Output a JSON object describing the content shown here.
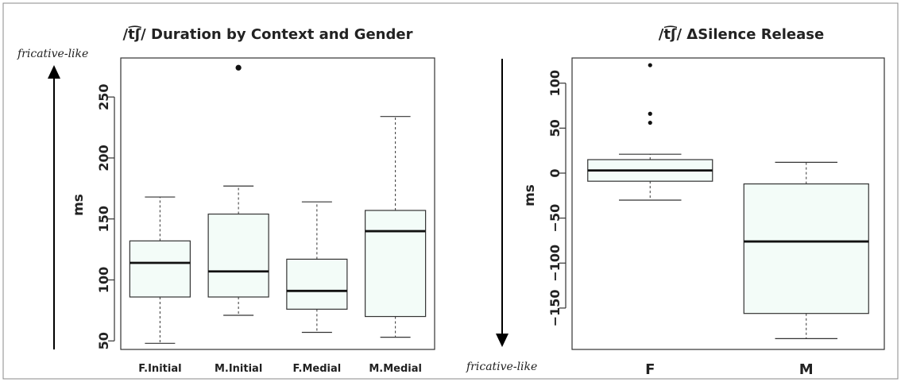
{
  "annotations": {
    "left_arrow_label": "fricative-like",
    "right_arrow_label": "fricative-like"
  },
  "chart_data": [
    {
      "type": "boxplot",
      "title": "/t͡ʃ/ Duration by Context and Gender",
      "xlabel": "",
      "ylabel": "ms",
      "ylim": [
        43,
        282
      ],
      "y_ticks": [
        50,
        100,
        150,
        200,
        250
      ],
      "grid": false,
      "categories": [
        "F.Initial",
        "M.Initial",
        "F.Medial",
        "M.Medial"
      ],
      "box_fill": "#f3fcf8",
      "boxes": [
        {
          "min": 48,
          "q1": 86,
          "median": 114,
          "q3": 132,
          "max": 168,
          "outliers": []
        },
        {
          "min": 71,
          "q1": 86,
          "median": 107,
          "q3": 154,
          "max": 177,
          "outliers": [
            274
          ]
        },
        {
          "min": 57,
          "q1": 76,
          "median": 91,
          "q3": 117,
          "max": 164,
          "outliers": []
        },
        {
          "min": 53,
          "q1": 70,
          "median": 140,
          "q3": 157,
          "max": 234,
          "outliers": []
        }
      ]
    },
    {
      "type": "boxplot",
      "title": "/t͡ʃ/ ΔSilence Release",
      "xlabel": "",
      "ylabel": "ms",
      "ylim": [
        -196,
        128
      ],
      "y_ticks": [
        -150,
        -100,
        -50,
        0,
        50,
        100
      ],
      "grid": false,
      "categories": [
        "F",
        "M"
      ],
      "box_fill": "#f3fcf8",
      "boxes": [
        {
          "min": -30,
          "q1": -9,
          "median": 3,
          "q3": 15,
          "max": 21,
          "outliers": [
            56,
            66,
            120
          ]
        },
        {
          "min": -184,
          "q1": -156,
          "median": -76,
          "q3": -12,
          "max": 12,
          "outliers": []
        }
      ]
    }
  ]
}
